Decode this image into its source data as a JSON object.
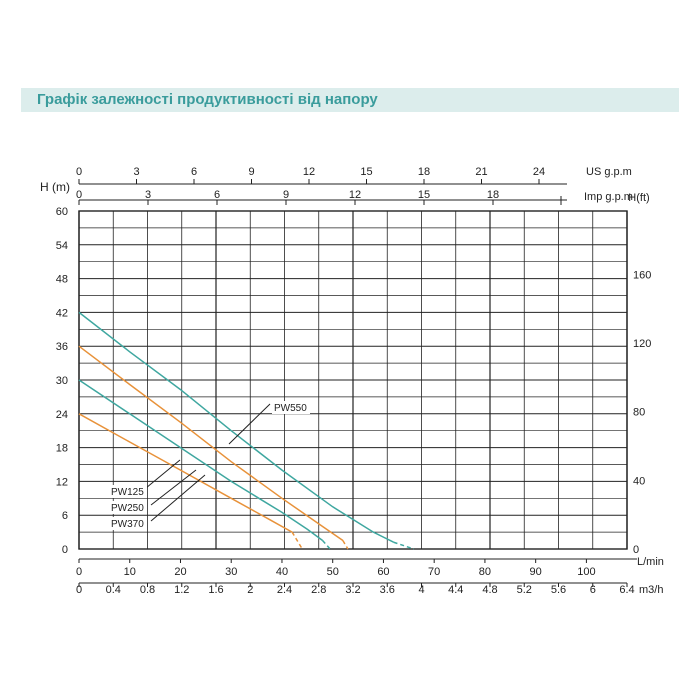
{
  "header": {
    "title": "Графік залежності продуктивності від напору"
  },
  "chart_data": {
    "type": "line",
    "ylabel_left": "H (m)",
    "ylabel_right": "H(ft)",
    "xlabel_lmin": "L/min",
    "xlabel_m3h": "m3/h",
    "xlabel_us": "US g.p.m",
    "xlabel_imp": "Imp g.p.m",
    "xlim_lmin": [
      0,
      108
    ],
    "ylim_m": [
      0,
      60
    ],
    "y_ticks_m": [
      0,
      6,
      12,
      18,
      24,
      30,
      36,
      42,
      48,
      54,
      60
    ],
    "y_ticks_ft": [
      0,
      40,
      80,
      120,
      160
    ],
    "x_ticks_lmin": [
      0,
      10,
      20,
      30,
      40,
      50,
      60,
      70,
      80,
      90,
      100
    ],
    "x_ticks_m3h": [
      "0",
      "0.4",
      "0.8",
      "1.2",
      "1.6",
      "2",
      "2.4",
      "2.8",
      "3.2",
      "3.6",
      "4",
      "4.4",
      "4.8",
      "5.2",
      "5.6",
      "6",
      "6.4"
    ],
    "x_ticks_us": [
      "0",
      "3",
      "6",
      "9",
      "12",
      "15",
      "18",
      "21",
      "24"
    ],
    "x_ticks_imp": [
      "0",
      "3",
      "6",
      "9",
      "12",
      "15",
      "18"
    ],
    "grid": true,
    "colors": {
      "teal": "#3fa7a0",
      "orange": "#e8923a",
      "grid": "#222222"
    },
    "series": [
      {
        "name": "PW550",
        "color": "#3fa7a0",
        "points": [
          [
            0,
            42
          ],
          [
            10,
            35
          ],
          [
            20,
            28.3
          ],
          [
            30,
            21
          ],
          [
            40,
            14
          ],
          [
            50,
            7.5
          ],
          [
            58,
            3
          ],
          [
            62,
            1.2
          ]
        ],
        "dashed_to": [
          66,
          0
        ]
      },
      {
        "name": "PW370",
        "color": "#e8923a",
        "points": [
          [
            0,
            36
          ],
          [
            10,
            29.2
          ],
          [
            20,
            22.5
          ],
          [
            30,
            15.5
          ],
          [
            40,
            9
          ],
          [
            48,
            4
          ],
          [
            52,
            1.5
          ]
        ],
        "dashed_to": [
          53,
          0
        ]
      },
      {
        "name": "PW250",
        "color": "#3fa7a0",
        "points": [
          [
            0,
            30
          ],
          [
            10,
            24
          ],
          [
            20,
            18
          ],
          [
            30,
            12
          ],
          [
            40,
            6.5
          ],
          [
            45,
            3.5
          ],
          [
            48,
            1.5
          ]
        ],
        "dashed_to": [
          49.5,
          0
        ]
      },
      {
        "name": "PW125",
        "color": "#e8923a",
        "points": [
          [
            0,
            24
          ],
          [
            10,
            19
          ],
          [
            20,
            14
          ],
          [
            30,
            9
          ],
          [
            38,
            5
          ],
          [
            42,
            3
          ]
        ],
        "dashed_to": [
          44,
          0
        ]
      }
    ],
    "annotations": [
      "PW550",
      "PW125",
      "PW250",
      "PW370"
    ]
  }
}
